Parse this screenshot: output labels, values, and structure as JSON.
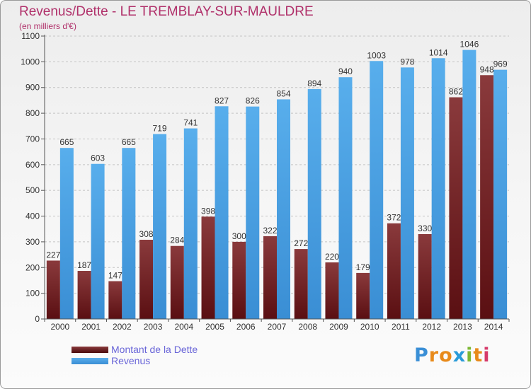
{
  "title": "Revenus/Dette - LE TREMBLAY-SUR-MAULDRE",
  "subtitle": "(en milliers d'€)",
  "colors": {
    "dette": "#7a2a2e",
    "revenus": "#4aa0e4",
    "title": "#b0306a",
    "legend_text": "#6a66d8"
  },
  "chart_data": {
    "type": "bar",
    "title": "Revenus/Dette - LE TREMBLAY-SUR-MAULDRE",
    "ylabel": "(en milliers d'€)",
    "categories": [
      "2000",
      "2001",
      "2002",
      "2003",
      "2004",
      "2005",
      "2006",
      "2007",
      "2008",
      "2009",
      "2010",
      "2011",
      "2012",
      "2013",
      "2014"
    ],
    "series": [
      {
        "name": "Montant de la Dette",
        "values": [
          227,
          187,
          147,
          308,
          284,
          398,
          300,
          322,
          272,
          220,
          179,
          372,
          330,
          862,
          948
        ]
      },
      {
        "name": "Revenus",
        "values": [
          665,
          603,
          665,
          719,
          741,
          827,
          826,
          854,
          894,
          940,
          1003,
          978,
          1014,
          1046,
          969
        ]
      }
    ],
    "ylim": [
      0,
      1100
    ],
    "yticks": [
      0,
      100,
      200,
      300,
      400,
      500,
      600,
      700,
      800,
      900,
      1000,
      1100
    ],
    "grid": true,
    "legend_position": "bottom-left"
  },
  "legend": {
    "items": [
      {
        "label": "Montant de la Dette"
      },
      {
        "label": "Revenus"
      }
    ]
  },
  "logo": {
    "letters": [
      "P",
      "r",
      "o",
      "x",
      "i",
      "t",
      "i"
    ],
    "colors": [
      "#3a8fd6",
      "#e88a1a",
      "#e88a1a",
      "#2a9bd8",
      "#7cb833",
      "#e88a1a",
      "#d63a6a"
    ]
  }
}
